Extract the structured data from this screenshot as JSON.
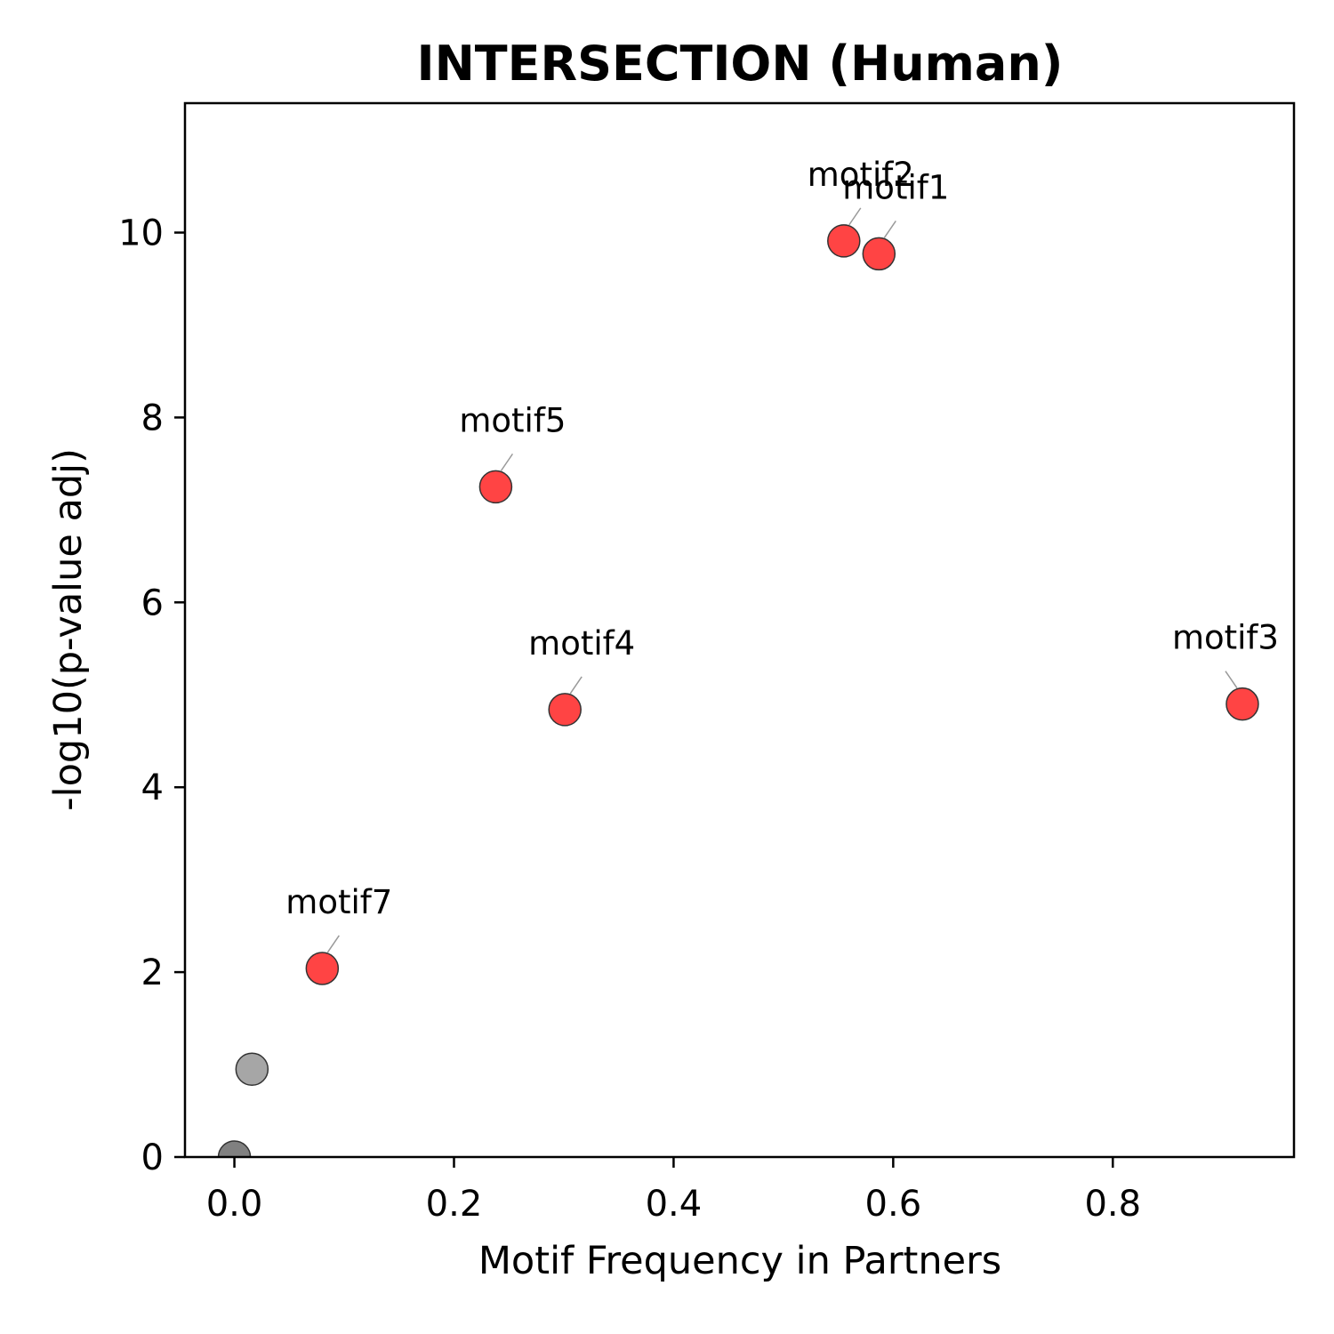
{
  "chart_data": {
    "type": "scatter",
    "title": "INTERSECTION (Human)",
    "xlabel": "Motif Frequency in Partners",
    "ylabel": "-log10(p-value adj)",
    "xlim": [
      -0.045,
      0.965
    ],
    "ylim": [
      0,
      11.4
    ],
    "xticks": [
      0.0,
      0.2,
      0.4,
      0.6,
      0.8
    ],
    "xtick_labels": [
      "0.0",
      "0.2",
      "0.4",
      "0.6",
      "0.8"
    ],
    "yticks": [
      0,
      2,
      4,
      6,
      8,
      10
    ],
    "ytick_labels": [
      "0",
      "2",
      "4",
      "6",
      "8",
      "10"
    ],
    "grid": false,
    "colors": {
      "significant": "#ff4444",
      "not_significant_light": "#a6a6a6",
      "not_significant_dark": "#808080",
      "edge": "#333333",
      "leader_line": "#999999"
    },
    "points": [
      {
        "label": "motif1",
        "x": 0.587,
        "y": 9.77,
        "significant": true
      },
      {
        "label": "motif2",
        "x": 0.555,
        "y": 9.91,
        "significant": true
      },
      {
        "label": "motif3",
        "x": 0.918,
        "y": 4.9,
        "significant": true
      },
      {
        "label": "motif4",
        "x": 0.301,
        "y": 4.84,
        "significant": true
      },
      {
        "label": "motif5",
        "x": 0.238,
        "y": 7.25,
        "significant": true
      },
      {
        "label": "motif7",
        "x": 0.08,
        "y": 2.04,
        "significant": true
      },
      {
        "label": "",
        "x": 0.016,
        "y": 0.95,
        "significant": false
      },
      {
        "label": "",
        "x": 0.0,
        "y": 0.0,
        "significant": false,
        "shade": "dark"
      }
    ]
  }
}
